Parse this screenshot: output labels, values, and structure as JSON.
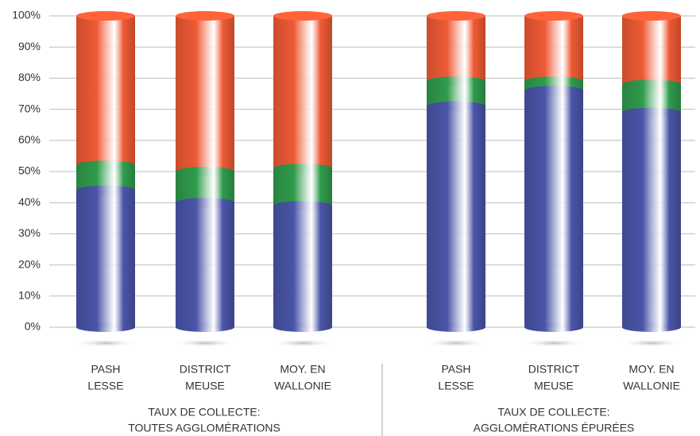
{
  "chart_data": {
    "type": "stacked_bar",
    "categories": [
      [
        "PASH",
        "LESSE"
      ],
      [
        "DISTRICT",
        "MEUSE"
      ],
      [
        "MOY. EN",
        "WALLONIE"
      ],
      [
        "PASH",
        "LESSE"
      ],
      [
        "DISTRICT",
        "MEUSE"
      ],
      [
        "MOY. EN",
        "WALLONIE"
      ]
    ],
    "groups": [
      [
        "TAUX DE COLLECTE:",
        "TOUTES AGGLOMÉRATIONS"
      ],
      [
        "TAUX DE COLLECTE:",
        "AGGLOMÉRATIONS ÉPURÉES"
      ]
    ],
    "series": [
      {
        "color": "#4a55a8",
        "values": [
          44,
          40,
          39,
          71,
          76,
          69
        ]
      },
      {
        "color": "#2f9b4c",
        "values": [
          8,
          10,
          12,
          8,
          3,
          9
        ]
      },
      {
        "color": "#ee5a35",
        "values": [
          48,
          50,
          49,
          21,
          21,
          22
        ]
      }
    ],
    "ylim": [
      0,
      100
    ],
    "yticks": [
      {
        "value": 0,
        "label": "0%"
      },
      {
        "value": 10,
        "label": "10%"
      },
      {
        "value": 20,
        "label": "20%"
      },
      {
        "value": 30,
        "label": "30%"
      },
      {
        "value": 40,
        "label": "40%"
      },
      {
        "value": 50,
        "label": "50%"
      },
      {
        "value": 60,
        "label": "60%"
      },
      {
        "value": 70,
        "label": "70%"
      },
      {
        "value": 80,
        "label": "80%"
      },
      {
        "value": 90,
        "label": "90%"
      },
      {
        "value": 100,
        "label": "100%"
      }
    ],
    "grid": true
  }
}
